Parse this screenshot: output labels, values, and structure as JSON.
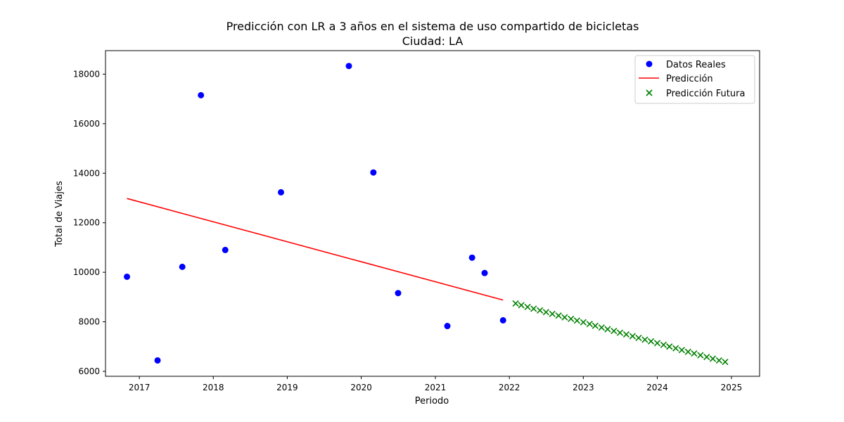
{
  "chart_data": {
    "type": "scatter",
    "title": "Predicción con LR a 3 años en el sistema de uso compartido de bicicletas",
    "subtitle": "Ciudad: LA",
    "xlabel": "Periodo",
    "ylabel": "Total de Viajes",
    "xlim": [
      "2016-07-18",
      "2025-05-20"
    ],
    "ylim": [
      5800,
      18950
    ],
    "x_ticks": [
      "2017",
      "2018",
      "2019",
      "2020",
      "2021",
      "2022",
      "2023",
      "2024",
      "2025"
    ],
    "y_ticks": [
      "6000",
      "8000",
      "10000",
      "12000",
      "14000",
      "16000",
      "18000"
    ],
    "grid": false,
    "legend_position": "top-right",
    "series": [
      {
        "name": "Datos Reales",
        "kind": "scatter",
        "marker": "circle",
        "color": "#0000ff",
        "points": [
          {
            "x": "2016-11-01",
            "y": 9820
          },
          {
            "x": "2017-04-01",
            "y": 6440
          },
          {
            "x": "2017-08-01",
            "y": 10220
          },
          {
            "x": "2017-11-01",
            "y": 17150
          },
          {
            "x": "2018-03-01",
            "y": 10900
          },
          {
            "x": "2018-12-01",
            "y": 13230
          },
          {
            "x": "2019-11-01",
            "y": 18330
          },
          {
            "x": "2020-03-01",
            "y": 14030
          },
          {
            "x": "2020-07-01",
            "y": 9160
          },
          {
            "x": "2021-03-01",
            "y": 7830
          },
          {
            "x": "2021-07-01",
            "y": 10590
          },
          {
            "x": "2021-09-01",
            "y": 9970
          },
          {
            "x": "2021-12-01",
            "y": 8060
          }
        ]
      },
      {
        "name": "Predicción",
        "kind": "line",
        "color": "#ff0000",
        "points": [
          {
            "x": "2016-11-01",
            "y": 12980
          },
          {
            "x": "2021-12-01",
            "y": 8880
          }
        ]
      },
      {
        "name": "Predicción Futura",
        "kind": "scatter",
        "marker": "x",
        "color": "#008000",
        "points": [
          {
            "x": "2022-02-01",
            "y": 8740
          },
          {
            "x": "2022-03-01",
            "y": 8670
          },
          {
            "x": "2022-04-01",
            "y": 8600
          },
          {
            "x": "2022-05-01",
            "y": 8530
          },
          {
            "x": "2022-06-01",
            "y": 8460
          },
          {
            "x": "2022-07-01",
            "y": 8390
          },
          {
            "x": "2022-08-01",
            "y": 8320
          },
          {
            "x": "2022-09-01",
            "y": 8250
          },
          {
            "x": "2022-10-01",
            "y": 8180
          },
          {
            "x": "2022-11-01",
            "y": 8120
          },
          {
            "x": "2022-12-01",
            "y": 8050
          },
          {
            "x": "2023-01-01",
            "y": 7980
          },
          {
            "x": "2023-02-01",
            "y": 7910
          },
          {
            "x": "2023-03-01",
            "y": 7840
          },
          {
            "x": "2023-04-01",
            "y": 7770
          },
          {
            "x": "2023-05-01",
            "y": 7700
          },
          {
            "x": "2023-06-01",
            "y": 7630
          },
          {
            "x": "2023-07-01",
            "y": 7560
          },
          {
            "x": "2023-08-01",
            "y": 7490
          },
          {
            "x": "2023-09-01",
            "y": 7420
          },
          {
            "x": "2023-10-01",
            "y": 7350
          },
          {
            "x": "2023-11-01",
            "y": 7280
          },
          {
            "x": "2023-12-01",
            "y": 7210
          },
          {
            "x": "2024-01-01",
            "y": 7140
          },
          {
            "x": "2024-02-01",
            "y": 7070
          },
          {
            "x": "2024-03-01",
            "y": 7000
          },
          {
            "x": "2024-04-01",
            "y": 6930
          },
          {
            "x": "2024-05-01",
            "y": 6860
          },
          {
            "x": "2024-06-01",
            "y": 6790
          },
          {
            "x": "2024-07-01",
            "y": 6720
          },
          {
            "x": "2024-08-01",
            "y": 6650
          },
          {
            "x": "2024-09-01",
            "y": 6580
          },
          {
            "x": "2024-10-01",
            "y": 6510
          },
          {
            "x": "2024-11-01",
            "y": 6440
          },
          {
            "x": "2024-12-01",
            "y": 6380
          }
        ]
      }
    ]
  }
}
